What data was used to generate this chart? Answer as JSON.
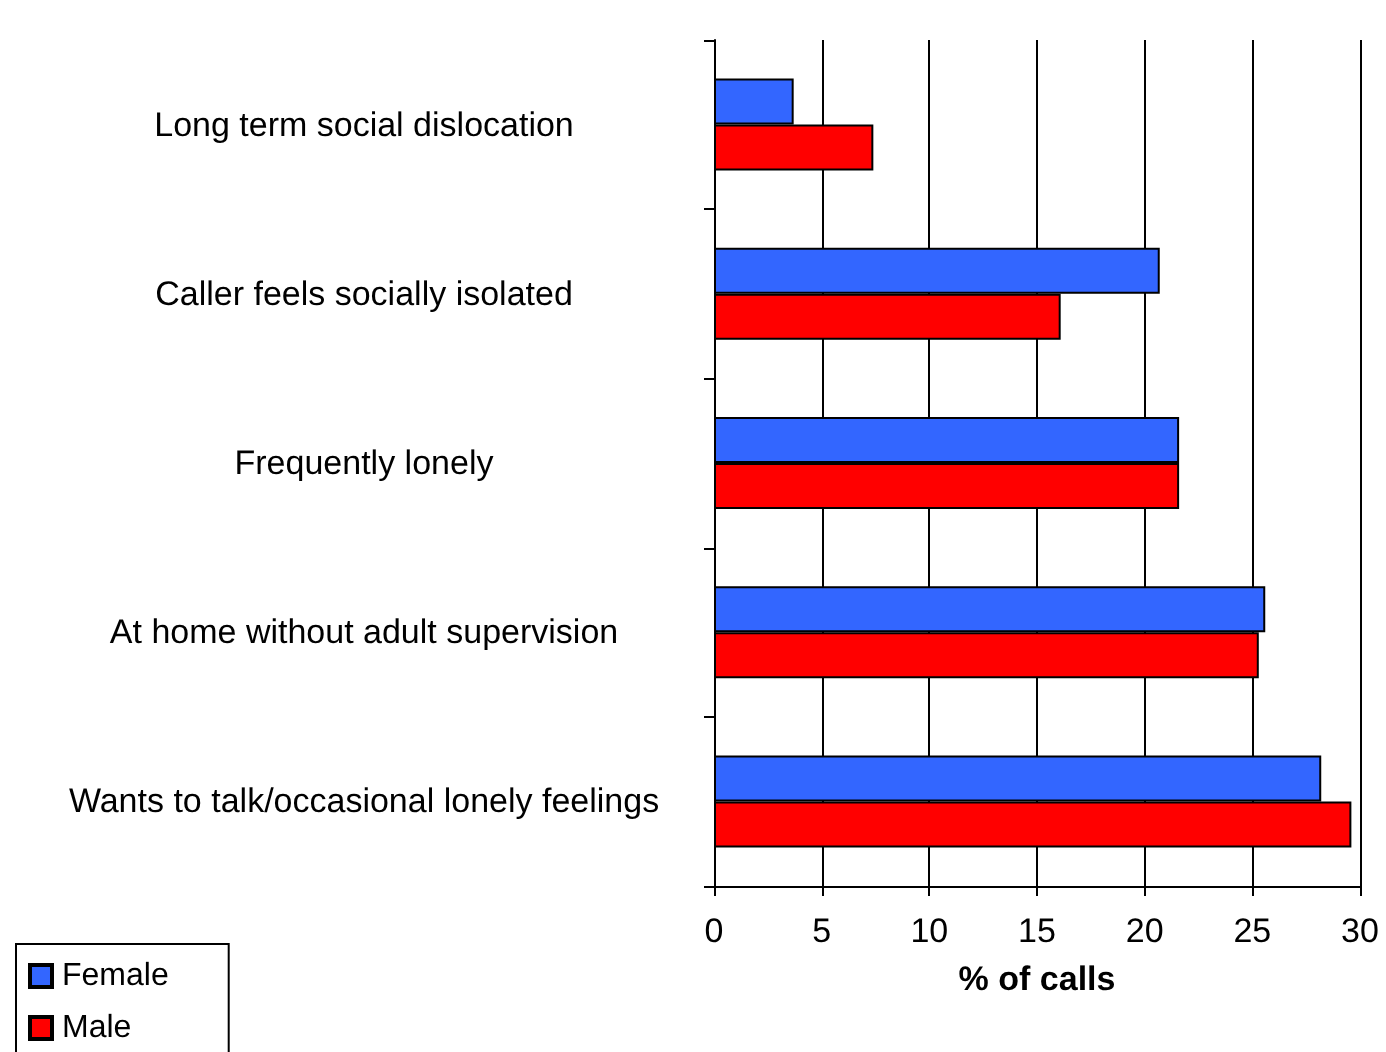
{
  "chart_data": {
    "type": "bar",
    "orientation": "horizontal",
    "xlabel": "% of calls",
    "categories": [
      "Long term social dislocation",
      "Caller feels socially isolated",
      "Frequently lonely",
      "At home without adult supervision",
      "Wants to talk/occasional lonely feelings"
    ],
    "series": [
      {
        "name": "Female",
        "color": "#3366ff",
        "values": [
          3.7,
          20.7,
          21.6,
          25.6,
          28.2
        ]
      },
      {
        "name": "Male",
        "color": "#ff0000",
        "values": [
          7.4,
          16.1,
          21.6,
          25.3,
          29.6
        ]
      }
    ],
    "xlim": [
      0,
      30
    ],
    "xticks": [
      0,
      5,
      10,
      15,
      20,
      25,
      30
    ],
    "grid": "x",
    "legend": "bottom left"
  }
}
